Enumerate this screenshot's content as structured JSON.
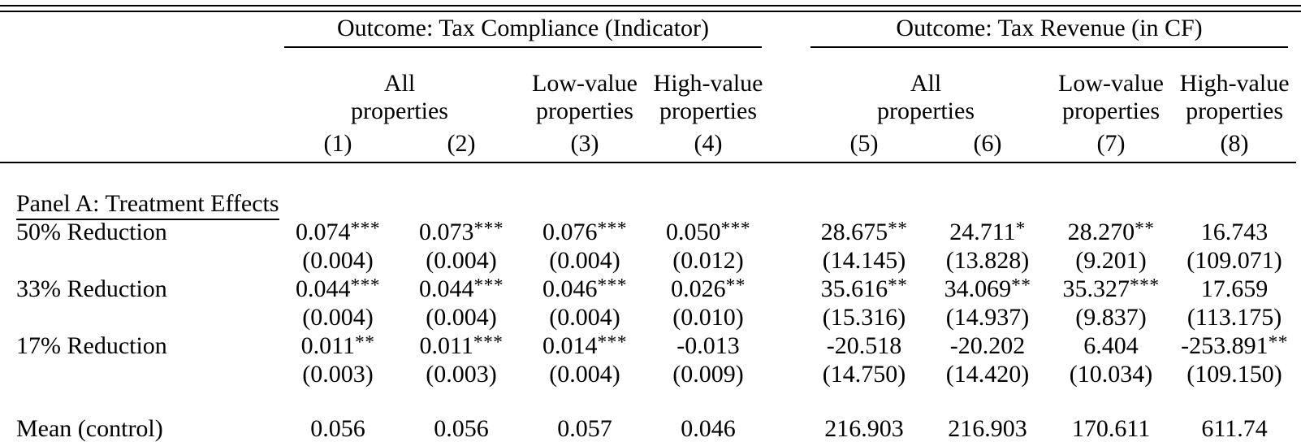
{
  "table": {
    "header": {
      "group1": "Outcome: Tax Compliance (Indicator)",
      "group2": "Outcome: Tax Revenue (in CF)",
      "sub": {
        "g1_all": "All\nproperties",
        "g1_low": "Low-value\nproperties",
        "g1_high": "High-value\nproperties",
        "g2_all": "All\nproperties",
        "g2_low": "Low-value\nproperties",
        "g2_high": "High-value\nproperties"
      },
      "colnums": [
        "(1)",
        "(2)",
        "(3)",
        "(4)",
        "(5)",
        "(6)",
        "(7)",
        "(8)"
      ]
    },
    "panel_a_title": "Panel A: Treatment Effects",
    "rows": [
      {
        "label": "50% Reduction",
        "cells": [
          "0.074***",
          "0.073***",
          "0.076***",
          "0.050***",
          "28.675**",
          "24.711*",
          "28.270**",
          "16.743"
        ]
      },
      {
        "label": "",
        "cells": [
          "(0.004)",
          "(0.004)",
          "(0.004)",
          "(0.012)",
          "(14.145)",
          "(13.828)",
          "(9.201)",
          "(109.071)"
        ]
      },
      {
        "label": "33% Reduction",
        "cells": [
          "0.044***",
          "0.044***",
          "0.046***",
          "0.026**",
          "35.616**",
          "34.069**",
          "35.327***",
          "17.659"
        ]
      },
      {
        "label": "",
        "cells": [
          "(0.004)",
          "(0.004)",
          "(0.004)",
          "(0.010)",
          "(15.316)",
          "(14.937)",
          "(9.837)",
          "(113.175)"
        ]
      },
      {
        "label": "17% Reduction",
        "cells": [
          "0.011**",
          "0.011***",
          "0.014***",
          "-0.013",
          "-20.518",
          "-20.202",
          "6.404",
          "-253.891**"
        ]
      },
      {
        "label": "",
        "cells": [
          "(0.003)",
          "(0.003)",
          "(0.004)",
          "(0.009)",
          "(14.750)",
          "(14.420)",
          "(10.034)",
          "(109.150)"
        ]
      }
    ],
    "mean_row": {
      "label": "Mean (control)",
      "cells": [
        "0.056",
        "0.056",
        "0.057",
        "0.046",
        "216.903",
        "216.903",
        "170.611",
        "611.74"
      ]
    }
  }
}
